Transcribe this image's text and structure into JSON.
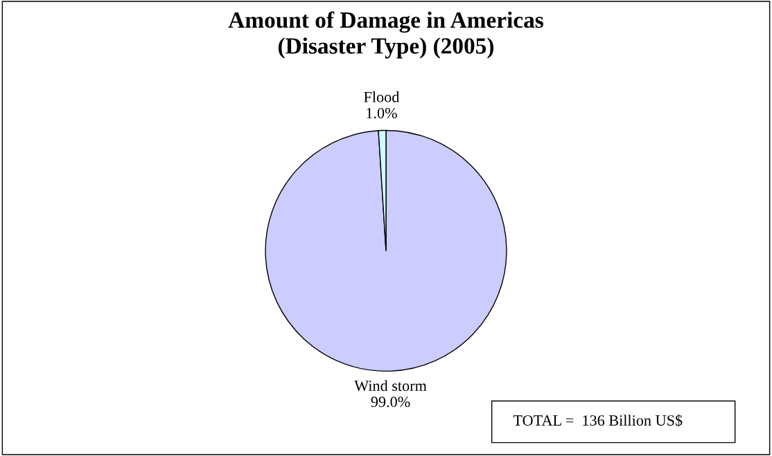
{
  "chart_data": {
    "type": "pie",
    "title": "Amount of Damage in Americas\n(Disaster Type) (2005)",
    "categories": [
      "Wind storm",
      "Flood"
    ],
    "values": [
      99.0,
      1.0
    ],
    "colors": [
      "#ccccff",
      "#ccffff"
    ],
    "value_labels": [
      "99.0%",
      "1.0%"
    ],
    "annotations": [
      "TOTAL =  136 Billion US$"
    ],
    "legend": false
  }
}
